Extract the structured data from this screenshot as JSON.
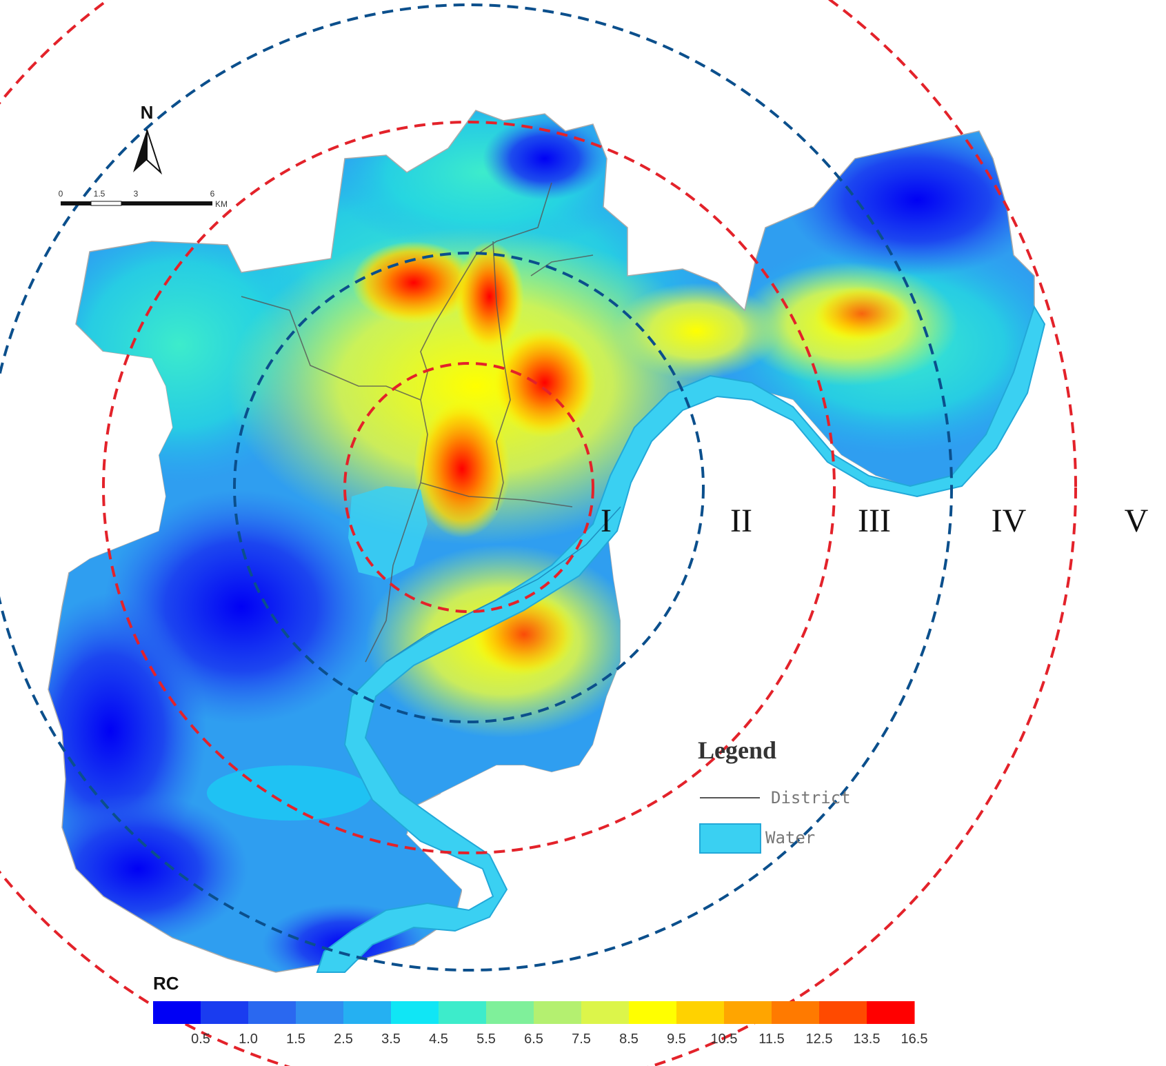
{
  "map": {
    "north_label": "N",
    "scale_bar": {
      "ticks": [
        "0",
        "1.5",
        "3",
        "6"
      ],
      "unit": "KM"
    },
    "ring_labels": [
      "I",
      "II",
      "III",
      "IV",
      "V"
    ],
    "ring_colors": [
      "#e3222a",
      "#0b4f8c",
      "#e3222a",
      "#0b4f8c",
      "#e3222a"
    ],
    "legend": {
      "title": "Legend",
      "items": [
        {
          "label": "District",
          "symbol": "line",
          "color": "#555555"
        },
        {
          "label": "Water",
          "symbol": "fill",
          "color": "#3ad0f2"
        }
      ]
    },
    "colorbar": {
      "title": "RC",
      "ticks": [
        "0.5",
        "1.0",
        "1.5",
        "2.5",
        "3.5",
        "4.5",
        "5.5",
        "6.5",
        "7.5",
        "8.5",
        "9.5",
        "10.5",
        "11.5",
        "12.5",
        "13.5",
        "16.5"
      ],
      "colors": [
        "#0000f5",
        "#1a3cf0",
        "#2a68f0",
        "#2f8ef0",
        "#25b0f2",
        "#10e6f5",
        "#3deccb",
        "#7ff09a",
        "#b4f070",
        "#dcf54a",
        "#ffff00",
        "#ffd200",
        "#ffa500",
        "#ff7a00",
        "#ff4a00",
        "#ff0000"
      ]
    }
  }
}
